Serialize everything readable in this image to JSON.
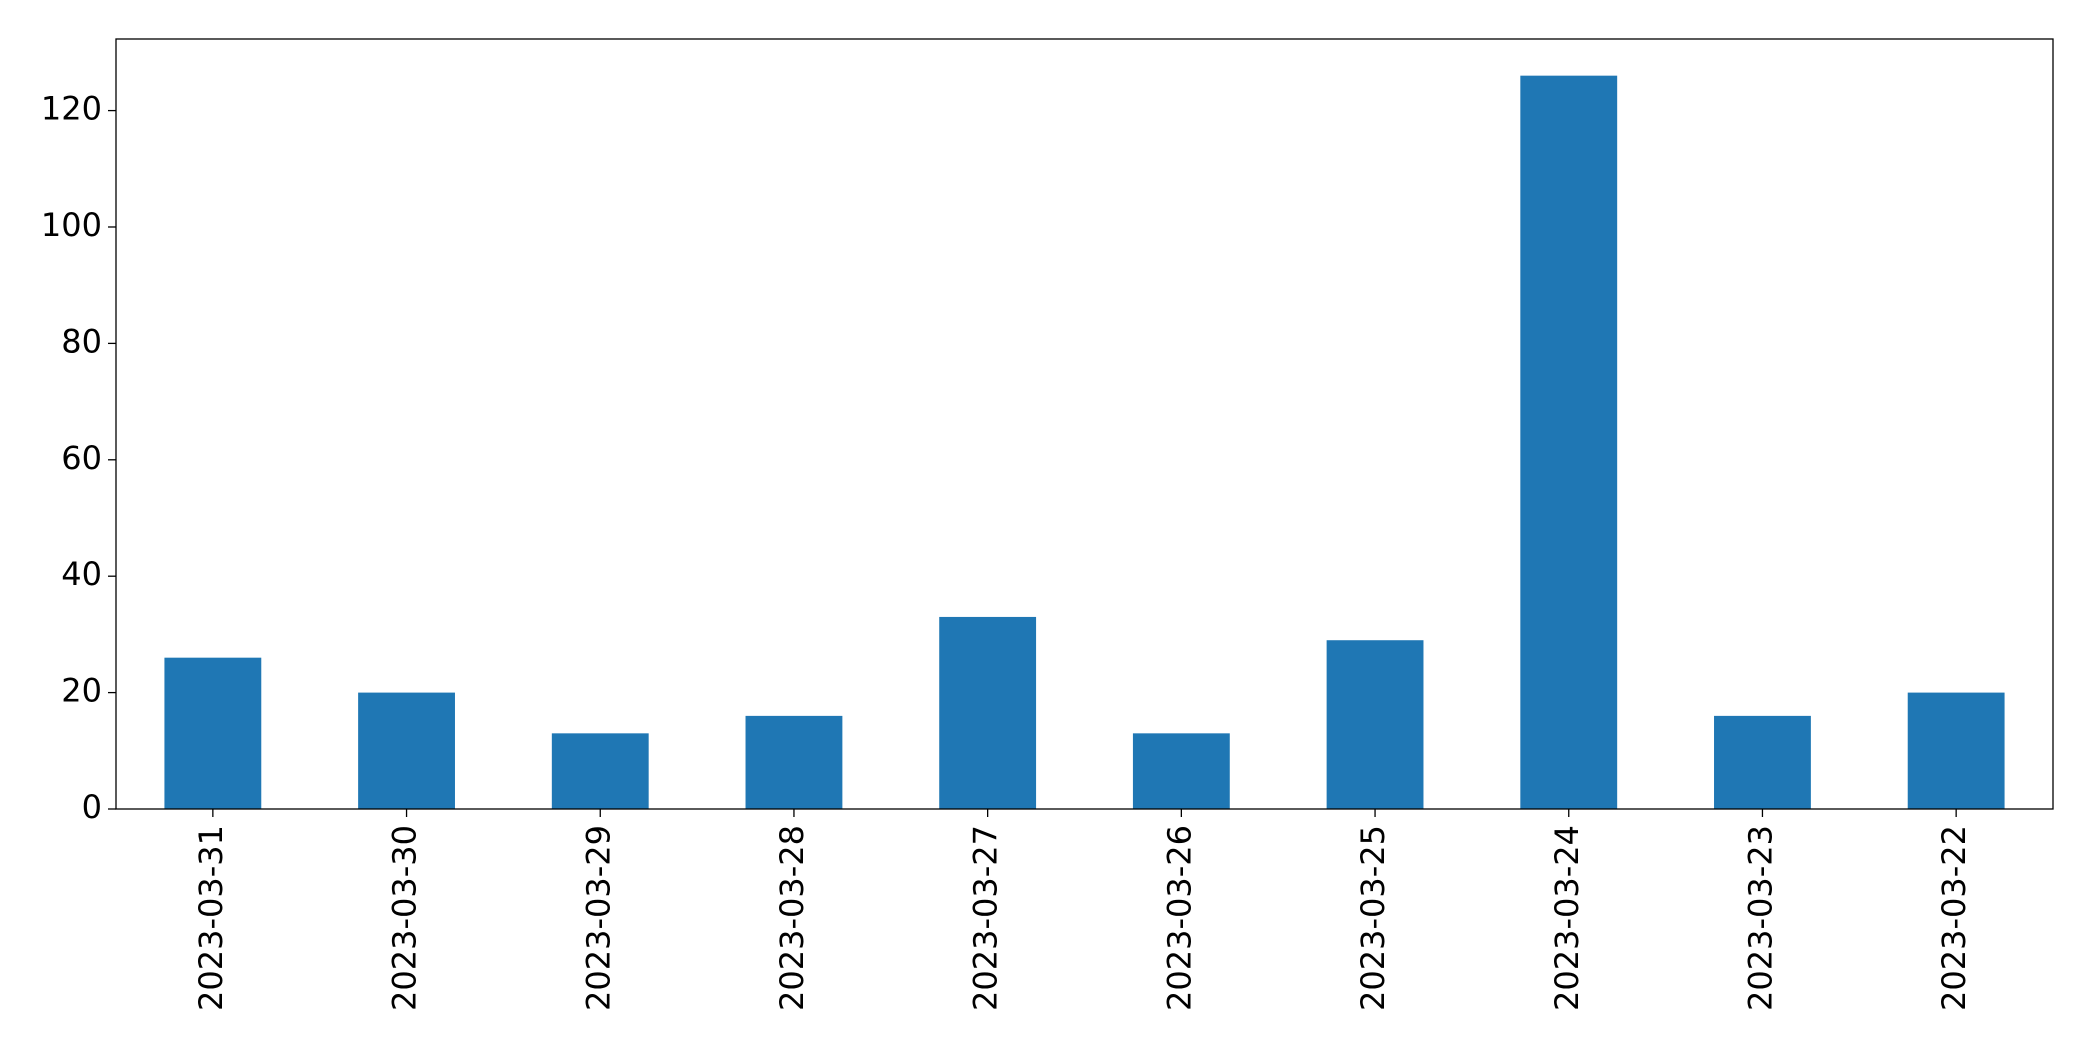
{
  "chart_data": {
    "type": "bar",
    "categories": [
      "2023-03-31",
      "2023-03-30",
      "2023-03-29",
      "2023-03-28",
      "2023-03-27",
      "2023-03-26",
      "2023-03-25",
      "2023-03-24",
      "2023-03-23",
      "2023-03-22"
    ],
    "values": [
      26,
      20,
      13,
      16,
      33,
      13,
      29,
      126,
      16,
      20
    ],
    "color": "#1f77b4",
    "ylim": [
      0,
      132.3
    ],
    "yticks": [
      0,
      20,
      40,
      60,
      80,
      100,
      120
    ],
    "grid": false
  }
}
